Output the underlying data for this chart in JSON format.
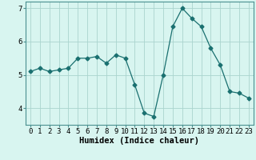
{
  "x": [
    0,
    1,
    2,
    3,
    4,
    5,
    6,
    7,
    8,
    9,
    10,
    11,
    12,
    13,
    14,
    15,
    16,
    17,
    18,
    19,
    20,
    21,
    22,
    23
  ],
  "y": [
    5.1,
    5.2,
    5.1,
    5.15,
    5.2,
    5.5,
    5.5,
    5.55,
    5.35,
    5.6,
    5.5,
    4.7,
    3.85,
    3.75,
    5.0,
    6.45,
    7.0,
    6.7,
    6.45,
    5.8,
    5.3,
    4.5,
    4.45,
    4.3
  ],
  "line_color": "#1a7070",
  "marker": "D",
  "marker_size": 2.5,
  "bg_color": "#d8f5f0",
  "grid_color": "#aad4ce",
  "xlabel": "Humidex (Indice chaleur)",
  "xlim": [
    -0.5,
    23.5
  ],
  "ylim": [
    3.5,
    7.2
  ],
  "yticks": [
    4,
    5,
    6,
    7
  ],
  "xtick_labels": [
    "0",
    "1",
    "2",
    "3",
    "4",
    "5",
    "6",
    "7",
    "8",
    "9",
    "10",
    "11",
    "12",
    "13",
    "14",
    "15",
    "16",
    "17",
    "18",
    "19",
    "20",
    "21",
    "22",
    "23"
  ],
  "label_fontsize": 7.5,
  "tick_fontsize": 6.5
}
